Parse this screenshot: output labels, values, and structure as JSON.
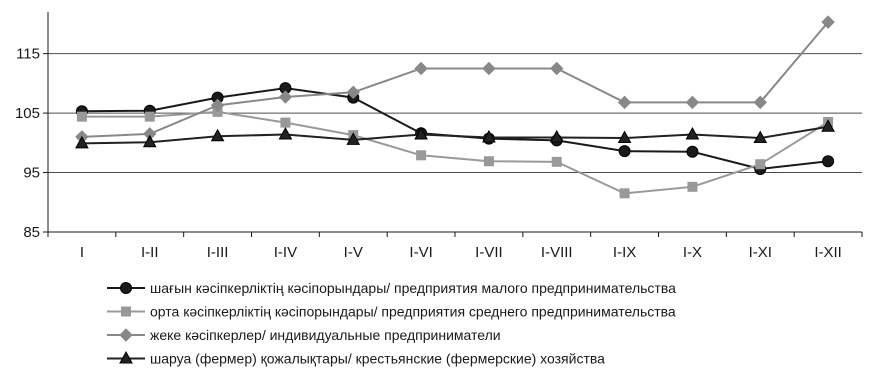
{
  "chart_data": {
    "type": "line",
    "categories": [
      "I",
      "I-II",
      "I-III",
      "I-IV",
      "I-V",
      "I-VI",
      "I-VII",
      "I-VIII",
      "I-IX",
      "I-X",
      "I-XI",
      "I-XII"
    ],
    "ylim": [
      85,
      122
    ],
    "yticks": [
      85,
      95,
      105,
      115
    ],
    "grid": true,
    "legend_position": "bottom",
    "series": [
      {
        "name": "шағын кәсіпкерліктің кәсіпорындары/ предприятия малого предпринимательства",
        "marker": "circle",
        "color": "#1a1a1a",
        "values": [
          105.3,
          105.4,
          107.6,
          109.2,
          107.6,
          101.6,
          100.7,
          100.4,
          98.6,
          98.5,
          95.6,
          96.9
        ]
      },
      {
        "name": "орта кәсіпкерліктің кәсіпорындары/ предприятия среднего предпринимательства",
        "marker": "square",
        "color": "#999999",
        "values": [
          104.4,
          104.4,
          105.2,
          103.4,
          101.3,
          97.9,
          96.9,
          96.8,
          91.5,
          92.6,
          96.4,
          103.5
        ]
      },
      {
        "name": "жеке кәсіпкерлер/ индивидуальные предприниматели",
        "marker": "diamond",
        "color": "#888888",
        "values": [
          101.0,
          101.5,
          106.3,
          107.7,
          108.5,
          112.5,
          112.5,
          112.5,
          106.8,
          106.8,
          106.8,
          120.3
        ]
      },
      {
        "name": "шаруа (фермер) қожалықтары/ крестьянские (фермерские) хозяйства",
        "marker": "triangle",
        "color": "#222222",
        "values": [
          99.9,
          100.1,
          101.1,
          101.4,
          100.5,
          101.4,
          100.9,
          100.9,
          100.8,
          101.4,
          100.8,
          102.7
        ]
      }
    ]
  }
}
